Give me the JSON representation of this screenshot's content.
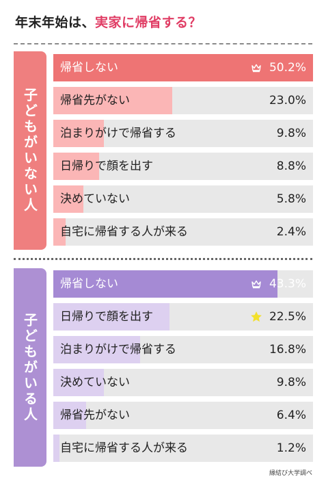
{
  "title": {
    "main": "年末年始は、",
    "accent": "実家に帰省する？"
  },
  "source": "縁結び大学調べ",
  "colors": {
    "accent": "#e03c64",
    "group1_label_bg": "#ef7f7f",
    "group1_top_bar": "#ee7474",
    "group1_bar": "#fbb6b6",
    "group2_label_bg": "#ad90d3",
    "group2_top_bar": "#a58ad4",
    "group2_bar": "#ddd0f0",
    "track": "#e8e8e8",
    "star": "#f3e02c"
  },
  "chart_data": [
    {
      "type": "bar",
      "group": "子どもがいない人",
      "unit": "%",
      "xlim": [
        0,
        50.2
      ],
      "categories": [
        "帰省しない",
        "帰省先がない",
        "泊まりがけで帰省する",
        "日帰りで顔を出す",
        "決めていない",
        "自宅に帰省する人が来る"
      ],
      "values": [
        50.2,
        23.0,
        9.8,
        8.8,
        5.8,
        2.4
      ],
      "labels": [
        "50.2%",
        "23.0%",
        "9.8%",
        "8.8%",
        "5.8%",
        "2.4%"
      ],
      "marks": [
        "crown-icon",
        "",
        "",
        "",
        "",
        ""
      ]
    },
    {
      "type": "bar",
      "group": "子どもがいる人",
      "unit": "%",
      "xlim": [
        0,
        50.2
      ],
      "categories": [
        "帰省しない",
        "日帰りで顔を出す",
        "泊まりがけで帰省する",
        "決めていない",
        "帰省先がない",
        "自宅に帰省する人が来る"
      ],
      "values": [
        43.3,
        22.5,
        16.8,
        9.8,
        6.4,
        1.2
      ],
      "labels": [
        "43.3%",
        "22.5%",
        "16.8%",
        "9.8%",
        "6.4%",
        "1.2%"
      ],
      "marks": [
        "crown-icon",
        "star-icon",
        "",
        "",
        "",
        ""
      ]
    }
  ]
}
